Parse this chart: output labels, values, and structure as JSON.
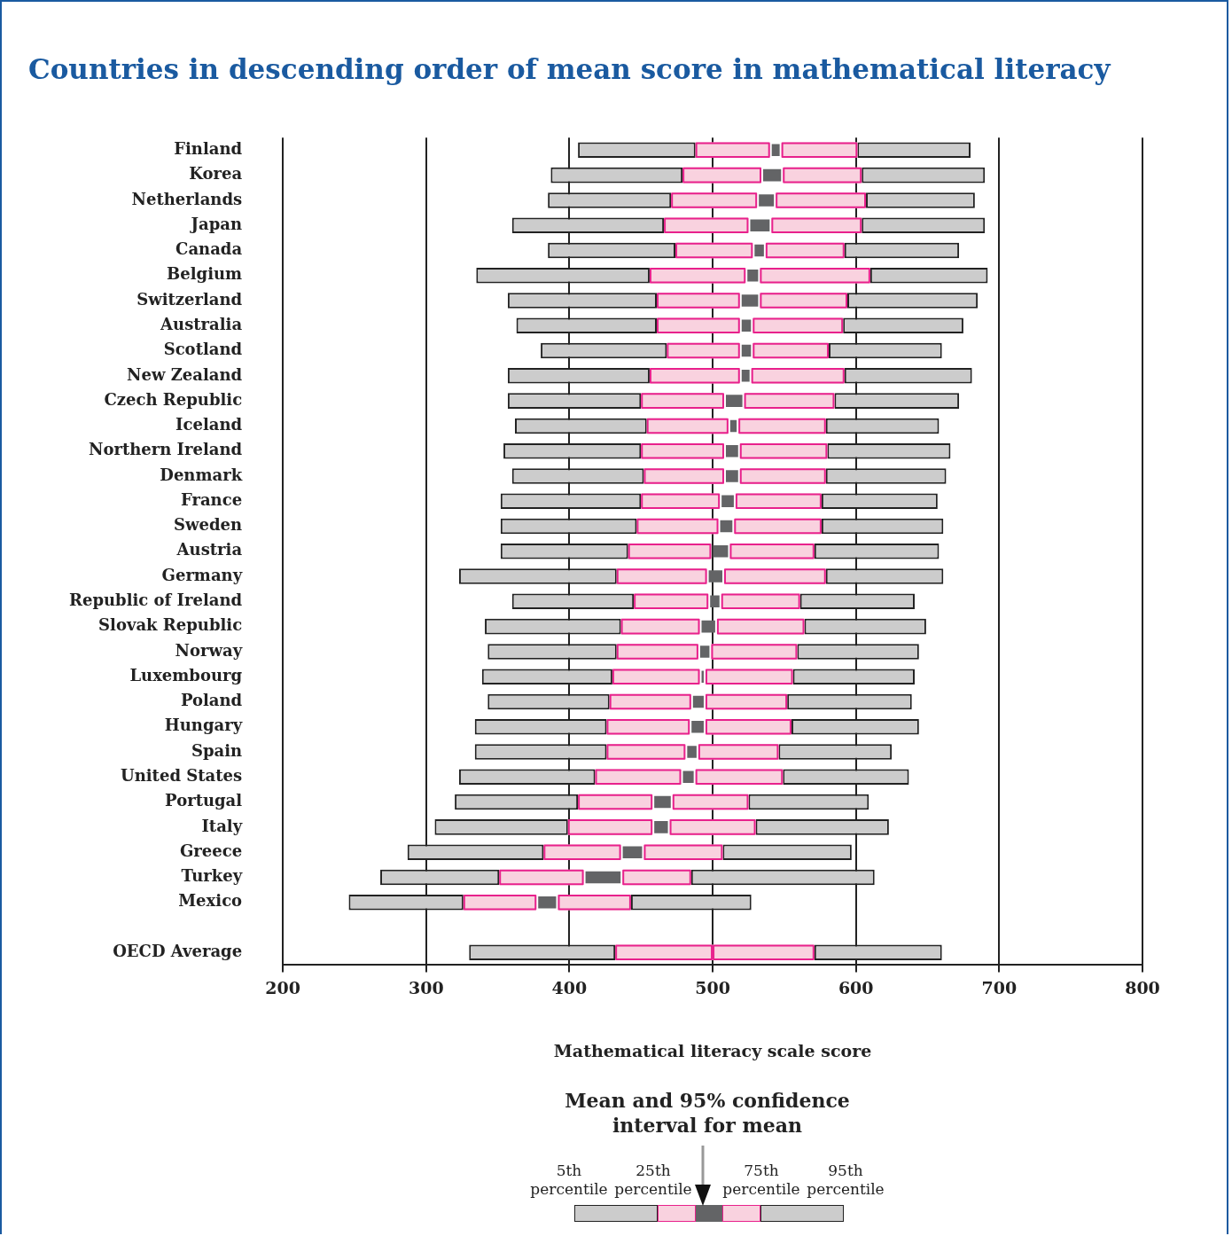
{
  "chart_data": {
    "type": "bar",
    "orientation": "horizontal",
    "title": "Countries in descending order of mean score in mathematical literacy",
    "xlabel": "Mathematical literacy scale score",
    "categories": [
      "Finland",
      "Korea",
      "Netherlands",
      "Japan",
      "Canada",
      "Belgium",
      "Switzerland",
      "Australia",
      "Scotland",
      "New Zealand",
      "Czech Republic",
      "Iceland",
      "Northern Ireland",
      "Denmark",
      "France",
      "Sweden",
      "Austria",
      "Germany",
      "Republic of Ireland",
      "Slovak Republic",
      "Norway",
      "Luxembourg",
      "Poland",
      "Hungary",
      "Spain",
      "United States",
      "Portugal",
      "Italy",
      "Greece",
      "Turkey",
      "Mexico",
      null,
      "OECD Average"
    ],
    "series": [
      {
        "color": "#cccccc",
        "base": [
          406,
          387,
          385,
          360,
          385,
          335,
          357,
          363,
          380,
          357,
          357,
          362,
          354,
          360,
          352,
          352,
          352,
          323,
          360,
          341,
          343,
          339,
          343,
          334,
          334,
          323,
          320,
          306,
          287,
          268,
          246,
          null,
          330
        ],
        "values": [
          82,
          92,
          86,
          106,
          89,
          121,
          104,
          98,
          88,
          99,
          93,
          92,
          96,
          92,
          98,
          95,
          89,
          110,
          85,
          95,
          90,
          91,
          85,
          92,
          92,
          95,
          86,
          93,
          95,
          83,
          80,
          null,
          102
        ]
      },
      {
        "color": "#f9d2df",
        "base": [
          488,
          479,
          471,
          466,
          474,
          456,
          461,
          461,
          468,
          456,
          450,
          454,
          450,
          452,
          450,
          447,
          441,
          433,
          445,
          436,
          433,
          430,
          428,
          426,
          426,
          418,
          406,
          399,
          382,
          351,
          326,
          null,
          432
        ],
        "values": [
          52,
          55,
          60,
          59,
          54,
          67,
          58,
          58,
          51,
          63,
          58,
          57,
          58,
          56,
          55,
          57,
          58,
          63,
          52,
          55,
          57,
          61,
          57,
          58,
          55,
          60,
          52,
          59,
          54,
          59,
          51,
          null,
          68
        ]
      },
      {
        "color": "#636466",
        "base": [
          540,
          534,
          531,
          525,
          528,
          523,
          519,
          519,
          519,
          519,
          508,
          511,
          508,
          508,
          505,
          504,
          499,
          496,
          497,
          491,
          490,
          491,
          485,
          484,
          481,
          478,
          458,
          458,
          436,
          410,
          377,
          null,
          null
        ],
        "values": [
          8,
          15,
          13,
          16,
          9,
          10,
          14,
          9,
          9,
          8,
          14,
          7,
          11,
          11,
          11,
          11,
          13,
          12,
          9,
          12,
          9,
          4,
          10,
          11,
          9,
          10,
          14,
          12,
          16,
          27,
          15,
          null,
          null
        ]
      },
      {
        "color": "#f9d2df",
        "base": [
          548,
          549,
          544,
          541,
          537,
          533,
          533,
          528,
          528,
          527,
          522,
          518,
          519,
          519,
          516,
          515,
          512,
          508,
          506,
          503,
          499,
          495,
          495,
          495,
          490,
          488,
          472,
          470,
          452,
          437,
          392,
          null,
          500
        ],
        "values": [
          53,
          55,
          63,
          63,
          55,
          77,
          61,
          63,
          53,
          65,
          63,
          61,
          61,
          60,
          60,
          61,
          59,
          71,
          55,
          61,
          60,
          61,
          57,
          60,
          56,
          61,
          53,
          60,
          55,
          48,
          51,
          null,
          71
        ]
      },
      {
        "color": "#cccccc",
        "base": [
          601,
          604,
          607,
          604,
          592,
          610,
          594,
          591,
          581,
          592,
          585,
          579,
          580,
          579,
          576,
          576,
          571,
          579,
          561,
          564,
          559,
          556,
          552,
          555,
          546,
          549,
          525,
          530,
          507,
          485,
          443,
          null,
          571
        ],
        "values": [
          79,
          86,
          76,
          86,
          80,
          82,
          91,
          84,
          79,
          89,
          87,
          79,
          86,
          84,
          81,
          85,
          87,
          82,
          80,
          85,
          85,
          85,
          87,
          89,
          79,
          88,
          84,
          93,
          90,
          128,
          84,
          null,
          89
        ]
      }
    ],
    "xlim": [
      200,
      800
    ],
    "xticks": [
      200,
      300,
      400,
      500,
      600,
      700,
      800
    ],
    "grid": "x",
    "legend": false,
    "annotations": [
      "Mean and 95% confidence interval for mean",
      "5th percentile",
      "25th percentile",
      "75th percentile",
      "95th percentile"
    ]
  }
}
